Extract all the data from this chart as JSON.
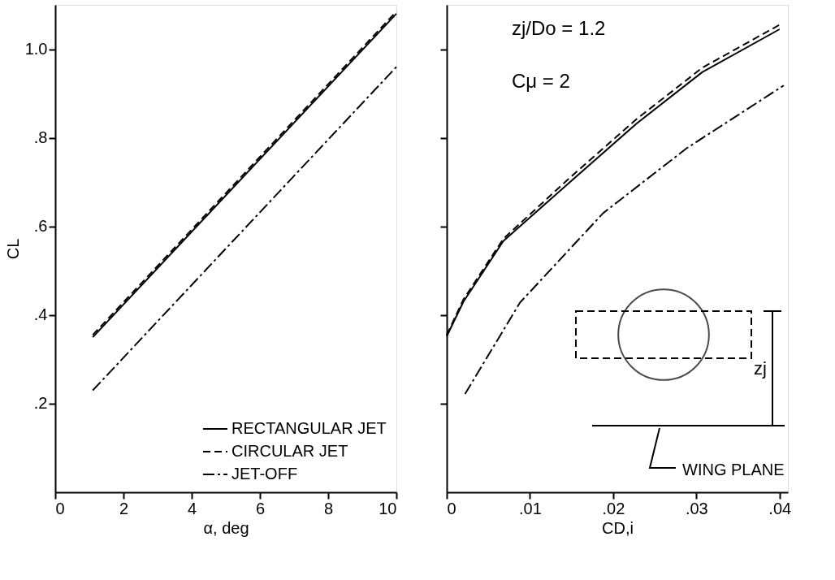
{
  "chart_data": [
    {
      "type": "line",
      "xlabel": "α, deg",
      "ylabel": "CL",
      "xlim": [
        0,
        10
      ],
      "ylim": [
        0,
        1.1
      ],
      "xticks": [
        0,
        2,
        4,
        6,
        8,
        10
      ],
      "yticks": [
        {
          "value": 0.2,
          "label": ".2"
        },
        {
          "value": 0.4,
          "label": ".4"
        },
        {
          "value": 0.6,
          "label": ".6"
        },
        {
          "value": 0.8,
          "label": ".8"
        },
        {
          "value": 1.0,
          "label": "1.0"
        }
      ],
      "grid": false,
      "legend": "bottom right",
      "series": [
        {
          "name": "RECTANGULAR JET",
          "color": "#000000",
          "line_style": "solid",
          "x": [
            1.1,
            10
          ],
          "values": [
            0.35,
            1.08
          ]
        },
        {
          "name": "CIRCULAR JET",
          "color": "#000000",
          "line_style": "dashed",
          "x": [
            1.1,
            10
          ],
          "values": [
            0.355,
            1.085
          ]
        },
        {
          "name": "JET-OFF",
          "color": "#000000",
          "line_style": "dashdot",
          "x": [
            1.1,
            10
          ],
          "values": [
            0.23,
            0.96
          ]
        }
      ]
    },
    {
      "type": "line",
      "xlabel": "CD,i",
      "xlim": [
        0,
        0.041
      ],
      "ylim": [
        0,
        1.1
      ],
      "xticks": [
        {
          "value": 0,
          "label": "0"
        },
        {
          "value": 0.01,
          "label": ".01"
        },
        {
          "value": 0.02,
          "label": ".02"
        },
        {
          "value": 0.03,
          "label": ".03"
        },
        {
          "value": 0.04,
          "label": ".04"
        }
      ],
      "yticks": [
        0.2,
        0.4,
        0.6,
        0.8,
        1.0
      ],
      "tick_labels": "x",
      "grid": false,
      "annotations": [
        "zj/Do = 1.2",
        "Cμ = 2",
        "zj",
        "WING PLANE"
      ],
      "series": [
        {
          "color": "#000000",
          "line_style": "solid",
          "x": [
            0,
            0.002,
            0.0068,
            0.0148,
            0.0228,
            0.0307,
            0.04
          ],
          "values": [
            0.352,
            0.43,
            0.567,
            0.7,
            0.832,
            0.948,
            1.045
          ]
        },
        {
          "color": "#000000",
          "line_style": "dashed",
          "x": [
            0,
            0.002,
            0.0068,
            0.0148,
            0.0228,
            0.0307,
            0.04
          ],
          "values": [
            0.355,
            0.435,
            0.572,
            0.71,
            0.842,
            0.958,
            1.055
          ]
        },
        {
          "color": "#000000",
          "line_style": "dashdot",
          "x": [
            0.0022,
            0.0088,
            0.0188,
            0.0288,
            0.0405
          ],
          "values": [
            0.222,
            0.428,
            0.63,
            0.776,
            0.918
          ]
        }
      ]
    }
  ]
}
